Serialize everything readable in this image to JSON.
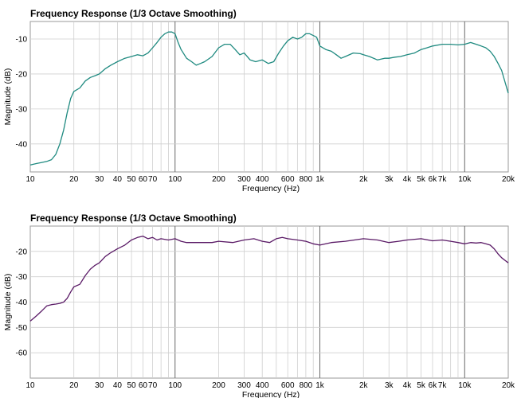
{
  "chart_data": [
    {
      "type": "line",
      "title": "Frequency Response (1/3 Octave Smoothing)",
      "xlabel": "Frequency (Hz)",
      "ylabel": "Magnitude (dB)",
      "xscale": "log",
      "xlim": [
        10,
        20000
      ],
      "ylim": [
        -48,
        -5
      ],
      "yticks": [
        -10,
        -20,
        -30,
        -40
      ],
      "xticks": [
        10,
        20,
        30,
        40,
        50,
        60,
        70,
        100,
        200,
        300,
        400,
        600,
        800,
        1000,
        2000,
        3000,
        4000,
        5000,
        6000,
        7000,
        10000,
        20000
      ],
      "xtick_labels": [
        "10",
        "20",
        "30",
        "40",
        "50",
        "60",
        "70",
        "100",
        "200",
        "300",
        "400",
        "600",
        "800",
        "1k",
        "2k",
        "3k",
        "4k",
        "5k",
        "6k",
        "7k",
        "10k",
        "20k"
      ],
      "grid": true,
      "color": "#1f8a80",
      "series": [
        {
          "x": [
            10,
            11,
            12,
            13,
            14,
            15,
            16,
            17,
            18,
            19,
            20,
            22,
            24,
            26,
            28,
            30,
            33,
            36,
            40,
            45,
            50,
            55,
            60,
            65,
            70,
            75,
            80,
            85,
            90,
            95,
            100,
            105,
            110,
            120,
            130,
            140,
            150,
            160,
            180,
            200,
            220,
            240,
            260,
            280,
            300,
            330,
            360,
            400,
            440,
            480,
            520,
            560,
            600,
            650,
            700,
            750,
            800,
            850,
            900,
            950,
            1000,
            1100,
            1200,
            1300,
            1400,
            1500,
            1700,
            1900,
            2000,
            2200,
            2500,
            2800,
            3000,
            3300,
            3600,
            4000,
            4500,
            5000,
            5500,
            6000,
            7000,
            8000,
            9000,
            10000,
            11000,
            12000,
            13000,
            14000,
            15000,
            16000,
            17000,
            18000,
            20000
          ],
          "y": [
            -46,
            -45.6,
            -45.3,
            -45,
            -44.5,
            -43,
            -40,
            -36,
            -31,
            -27,
            -25,
            -24,
            -22,
            -21,
            -20.5,
            -20,
            -18.5,
            -17.5,
            -16.5,
            -15.5,
            -15,
            -14.5,
            -14.8,
            -14,
            -12.5,
            -11,
            -9.5,
            -8.5,
            -8,
            -8,
            -8.5,
            -11,
            -13,
            -15.5,
            -16.5,
            -17.5,
            -17,
            -16.5,
            -15,
            -12.5,
            -11.5,
            -11.5,
            -13,
            -14.5,
            -14,
            -16,
            -16.5,
            -16,
            -17,
            -16.5,
            -14,
            -12,
            -10.5,
            -9.5,
            -10,
            -9.5,
            -8.5,
            -8.5,
            -9,
            -9.5,
            -12,
            -13,
            -13.5,
            -14.5,
            -15.5,
            -15,
            -14,
            -14.2,
            -14.5,
            -15,
            -16,
            -15.5,
            -15.5,
            -15.2,
            -15,
            -14.5,
            -14,
            -13,
            -12.5,
            -12,
            -11.5,
            -11.5,
            -11.7,
            -11.5,
            -11,
            -11.5,
            -12,
            -12.5,
            -13.5,
            -15,
            -17,
            -19,
            -25.5
          ]
        }
      ]
    },
    {
      "type": "line",
      "title": "Frequency Response (1/3 Octave Smoothing)",
      "xlabel": "Frequency (Hz)",
      "ylabel": "Magnitude (dB)",
      "xscale": "log",
      "xlim": [
        10,
        20000
      ],
      "ylim": [
        -70,
        -10
      ],
      "yticks": [
        -20,
        -30,
        -40,
        -50,
        -60
      ],
      "xticks": [
        10,
        20,
        30,
        40,
        50,
        60,
        70,
        100,
        200,
        300,
        400,
        600,
        800,
        1000,
        2000,
        3000,
        4000,
        5000,
        6000,
        7000,
        10000,
        20000
      ],
      "xtick_labels": [
        "10",
        "20",
        "30",
        "40",
        "50",
        "60",
        "70",
        "100",
        "200",
        "300",
        "400",
        "600",
        "800",
        "1k",
        "2k",
        "3k",
        "4k",
        "5k",
        "6k",
        "7k",
        "10k",
        "20k"
      ],
      "grid": true,
      "color": "#5a1a66",
      "series": [
        {
          "x": [
            10,
            11,
            12,
            13,
            14,
            15,
            16,
            17,
            18,
            19,
            20,
            22,
            24,
            26,
            28,
            30,
            33,
            36,
            40,
            45,
            50,
            55,
            60,
            65,
            70,
            75,
            80,
            90,
            100,
            110,
            120,
            140,
            160,
            180,
            200,
            250,
            300,
            350,
            400,
            450,
            500,
            550,
            600,
            700,
            800,
            900,
            1000,
            1200,
            1500,
            2000,
            2500,
            3000,
            3500,
            4000,
            5000,
            6000,
            7000,
            8000,
            9000,
            10000,
            11000,
            12000,
            13000,
            14000,
            15000,
            16000,
            17000,
            18000,
            20000
          ],
          "y": [
            -47.5,
            -45.5,
            -43.5,
            -41.5,
            -41,
            -40.8,
            -40.5,
            -40,
            -38.5,
            -36,
            -34,
            -33,
            -29.5,
            -27,
            -25.5,
            -24.5,
            -22,
            -20.5,
            -19,
            -17.5,
            -15.5,
            -14.5,
            -14,
            -15,
            -14.5,
            -15.5,
            -15,
            -15.5,
            -15,
            -16,
            -16.5,
            -16.5,
            -16.5,
            -16.5,
            -16,
            -16.5,
            -15.5,
            -15,
            -16,
            -16.5,
            -15,
            -14.5,
            -15,
            -15.5,
            -16,
            -17,
            -17.5,
            -16.5,
            -16,
            -15,
            -15.5,
            -16.5,
            -16,
            -15.5,
            -15,
            -15.8,
            -15.5,
            -16,
            -16.5,
            -17,
            -16.5,
            -16.7,
            -16.5,
            -17,
            -17.5,
            -19,
            -21,
            -22.5,
            -24.5
          ]
        }
      ]
    }
  ]
}
